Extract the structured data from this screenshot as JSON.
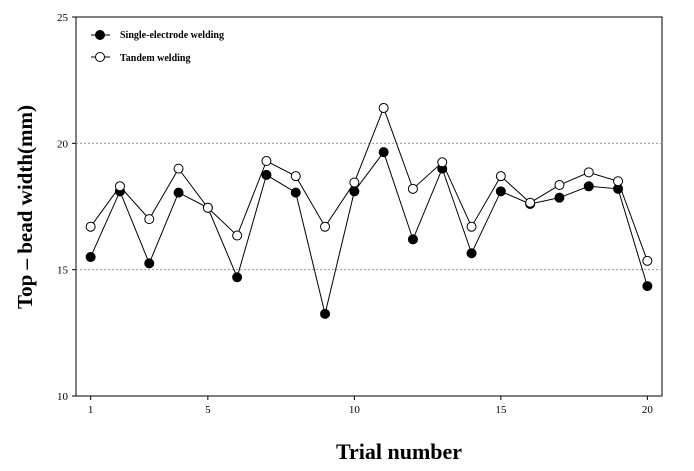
{
  "chart_data": {
    "type": "line",
    "xlabel": "Trial number",
    "ylabel": "Top – bead width(mm)",
    "xlim": [
      0.5,
      20.5
    ],
    "ylim": [
      10,
      25
    ],
    "x_ticks": [
      1,
      5,
      10,
      15,
      20
    ],
    "y_ticks": [
      10,
      15,
      20,
      25
    ],
    "grid": "dotted horizontal at 15 and 20",
    "legend": "top-left",
    "x": [
      1,
      2,
      3,
      4,
      5,
      6,
      7,
      8,
      9,
      10,
      11,
      12,
      13,
      14,
      15,
      16,
      17,
      18,
      19,
      20
    ],
    "series": [
      {
        "name": "Single-electrode welding",
        "marker": "filled-circle",
        "color": "#000000",
        "values": [
          15.5,
          18.1,
          15.25,
          18.05,
          17.45,
          14.7,
          18.75,
          18.05,
          13.25,
          18.1,
          19.65,
          16.2,
          19.0,
          15.65,
          18.1,
          17.6,
          17.85,
          18.3,
          18.2,
          14.35
        ]
      },
      {
        "name": "Tandem welding",
        "marker": "open-circle",
        "color": "#000000",
        "values": [
          16.7,
          18.3,
          17.0,
          19.0,
          17.45,
          16.35,
          19.3,
          18.7,
          16.7,
          18.45,
          21.4,
          18.2,
          19.25,
          16.7,
          18.7,
          17.65,
          18.35,
          18.85,
          18.5,
          15.35
        ]
      }
    ]
  }
}
